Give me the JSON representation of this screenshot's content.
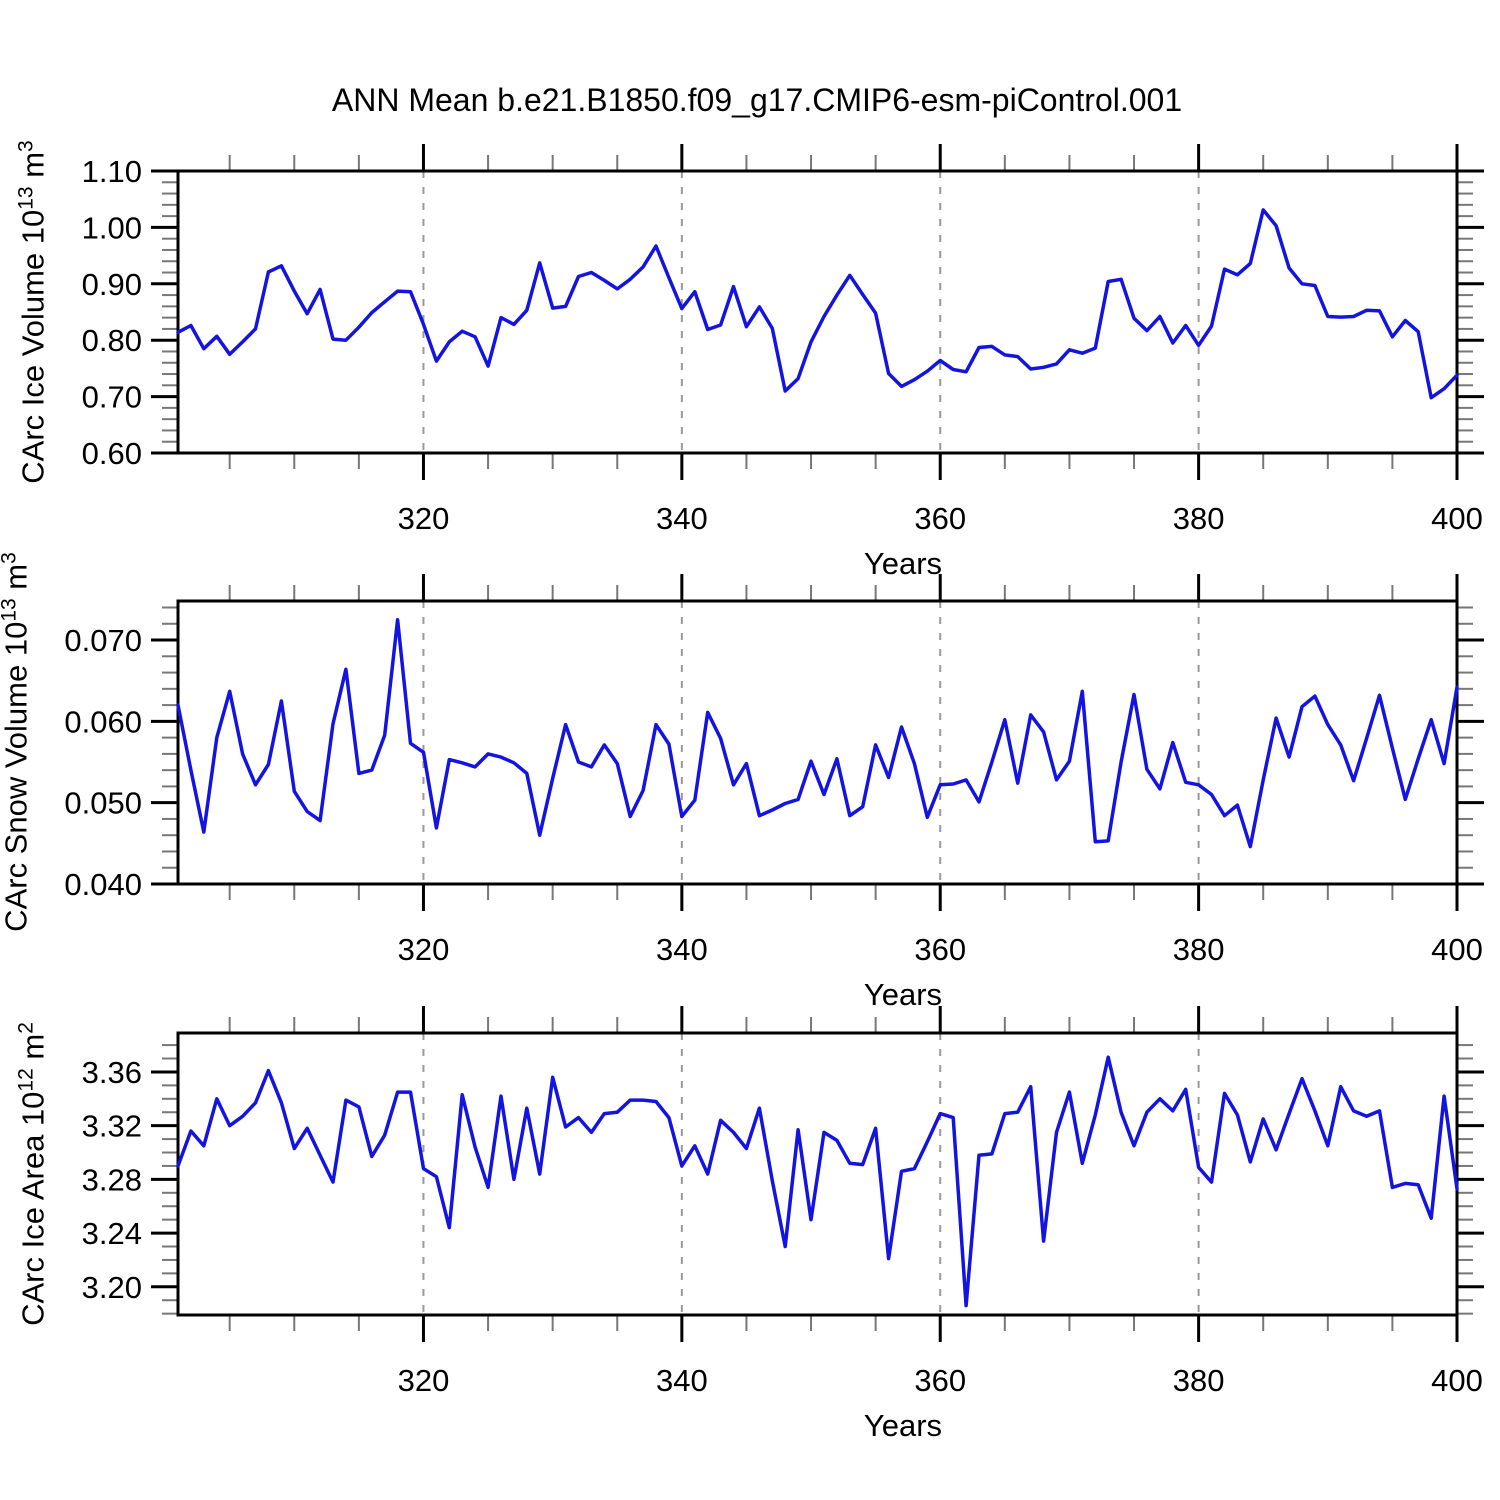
{
  "title": "ANN Mean b.e21.B1850.f09_g17.CMIP6-esm-piControl.001",
  "x_axis": {
    "label": "Years",
    "start": 301,
    "end": 400,
    "major_ticks": [
      320,
      340,
      360,
      380,
      400
    ],
    "minor_tick_step": 5,
    "gridlines_at": [
      320,
      340,
      360,
      380
    ]
  },
  "colors": {
    "line": "#1414e0",
    "grid": "#999999",
    "axis": "#000000",
    "minor_tick": "#777777"
  },
  "chart_data": [
    {
      "type": "line",
      "name": "ice-volume",
      "ylabel_text": "CArc Ice Volume 10^13 m^3",
      "ylabel": {
        "base": "CArc Ice Volume 10",
        "exp1": "13",
        "mid": " m",
        "exp2": "3"
      },
      "x_range": [
        301,
        400
      ],
      "x_step": 1,
      "axis_ylim": [
        0.6,
        1.1
      ],
      "yticks": [
        {
          "v": 0.6,
          "label": "0.60"
        },
        {
          "v": 0.7,
          "label": "0.70"
        },
        {
          "v": 0.8,
          "label": "0.80"
        },
        {
          "v": 0.9,
          "label": "0.90"
        },
        {
          "v": 1.0,
          "label": "1.00"
        },
        {
          "v": 1.1,
          "label": "1.10"
        }
      ],
      "y_minor_step": 0.02,
      "values": [
        0.814,
        0.826,
        0.785,
        0.807,
        0.775,
        0.797,
        0.82,
        0.921,
        0.932,
        0.887,
        0.847,
        0.89,
        0.802,
        0.8,
        0.823,
        0.849,
        0.868,
        0.887,
        0.886,
        0.828,
        0.763,
        0.797,
        0.816,
        0.806,
        0.754,
        0.84,
        0.828,
        0.853,
        0.937,
        0.857,
        0.86,
        0.913,
        0.92,
        0.906,
        0.891,
        0.908,
        0.93,
        0.967,
        0.911,
        0.856,
        0.886,
        0.819,
        0.827,
        0.895,
        0.824,
        0.859,
        0.821,
        0.71,
        0.732,
        0.797,
        0.842,
        0.88,
        0.915,
        0.881,
        0.848,
        0.741,
        0.718,
        0.73,
        0.745,
        0.764,
        0.748,
        0.744,
        0.787,
        0.789,
        0.774,
        0.771,
        0.749,
        0.752,
        0.758,
        0.783,
        0.777,
        0.786,
        0.904,
        0.908,
        0.839,
        0.817,
        0.842,
        0.795,
        0.826,
        0.791,
        0.825,
        0.926,
        0.916,
        0.936,
        1.031,
        1.003,
        0.928,
        0.9,
        0.897,
        0.842,
        0.841,
        0.842,
        0.853,
        0.852,
        0.806,
        0.835,
        0.815,
        0.698,
        0.714,
        0.738
      ]
    },
    {
      "type": "line",
      "name": "snow-volume",
      "ylabel_text": "CArc Snow Volume 10^13 m^3",
      "ylabel": {
        "base": "CArc Snow Volume 10",
        "exp1": "13",
        "mid": " m",
        "exp2": "3"
      },
      "x_range": [
        301,
        400
      ],
      "x_step": 1,
      "axis_ylim": [
        0.04,
        0.0748
      ],
      "yticks": [
        {
          "v": 0.04,
          "label": "0.040"
        },
        {
          "v": 0.05,
          "label": "0.050"
        },
        {
          "v": 0.06,
          "label": "0.060"
        },
        {
          "v": 0.07,
          "label": "0.070"
        }
      ],
      "y_minor_step": 0.002,
      "values": [
        0.062,
        0.054,
        0.0464,
        0.058,
        0.0637,
        0.056,
        0.0522,
        0.0547,
        0.0625,
        0.0514,
        0.0489,
        0.0478,
        0.0597,
        0.0664,
        0.0536,
        0.054,
        0.0583,
        0.0725,
        0.0573,
        0.0562,
        0.0469,
        0.0553,
        0.0549,
        0.0544,
        0.056,
        0.0556,
        0.0549,
        0.0536,
        0.046,
        0.053,
        0.0596,
        0.055,
        0.0544,
        0.0571,
        0.0548,
        0.0483,
        0.0515,
        0.0596,
        0.0572,
        0.0483,
        0.0503,
        0.0611,
        0.0579,
        0.0522,
        0.0548,
        0.0484,
        0.0491,
        0.0499,
        0.0504,
        0.0551,
        0.051,
        0.0554,
        0.0484,
        0.0495,
        0.0571,
        0.0531,
        0.0593,
        0.0548,
        0.0482,
        0.0522,
        0.0523,
        0.0528,
        0.0501,
        0.055,
        0.0602,
        0.0524,
        0.0608,
        0.0587,
        0.0528,
        0.0551,
        0.0637,
        0.0452,
        0.0453,
        0.055,
        0.0633,
        0.0541,
        0.0517,
        0.0574,
        0.0525,
        0.0522,
        0.051,
        0.0484,
        0.0497,
        0.0446,
        0.0528,
        0.0604,
        0.0556,
        0.0618,
        0.0631,
        0.0596,
        0.0571,
        0.0527,
        0.0579,
        0.0632,
        0.0567,
        0.0504,
        0.0554,
        0.0602,
        0.0548,
        0.0642
      ]
    },
    {
      "type": "line",
      "name": "ice-area",
      "ylabel_text": "CArc Ice Area 10^12 m^2",
      "ylabel": {
        "base": "CArc Ice Area 10",
        "exp1": "12",
        "mid": " m",
        "exp2": "2"
      },
      "x_range": [
        301,
        400
      ],
      "x_step": 1,
      "axis_ylim": [
        3.179,
        3.389
      ],
      "yticks": [
        {
          "v": 3.2,
          "label": "3.20"
        },
        {
          "v": 3.24,
          "label": "3.24"
        },
        {
          "v": 3.28,
          "label": "3.28"
        },
        {
          "v": 3.32,
          "label": "3.32"
        },
        {
          "v": 3.36,
          "label": "3.36"
        }
      ],
      "y_minor_step": 0.01,
      "values": [
        3.29,
        3.316,
        3.305,
        3.34,
        3.32,
        3.327,
        3.337,
        3.361,
        3.337,
        3.303,
        3.318,
        3.298,
        3.278,
        3.339,
        3.334,
        3.297,
        3.313,
        3.345,
        3.345,
        3.288,
        3.282,
        3.244,
        3.343,
        3.304,
        3.274,
        3.342,
        3.28,
        3.333,
        3.284,
        3.356,
        3.319,
        3.326,
        3.315,
        3.329,
        3.33,
        3.339,
        3.339,
        3.338,
        3.326,
        3.29,
        3.305,
        3.284,
        3.324,
        3.315,
        3.303,
        3.333,
        3.279,
        3.23,
        3.317,
        3.25,
        3.315,
        3.309,
        3.292,
        3.291,
        3.318,
        3.221,
        3.286,
        3.288,
        3.308,
        3.329,
        3.326,
        3.186,
        3.298,
        3.299,
        3.329,
        3.33,
        3.349,
        3.234,
        3.315,
        3.345,
        3.292,
        3.328,
        3.371,
        3.33,
        3.305,
        3.33,
        3.34,
        3.331,
        3.347,
        3.289,
        3.278,
        3.344,
        3.328,
        3.293,
        3.325,
        3.302,
        3.329,
        3.355,
        3.331,
        3.305,
        3.349,
        3.331,
        3.327,
        3.331,
        3.274,
        3.277,
        3.276,
        3.251,
        3.342,
        3.273
      ]
    }
  ]
}
